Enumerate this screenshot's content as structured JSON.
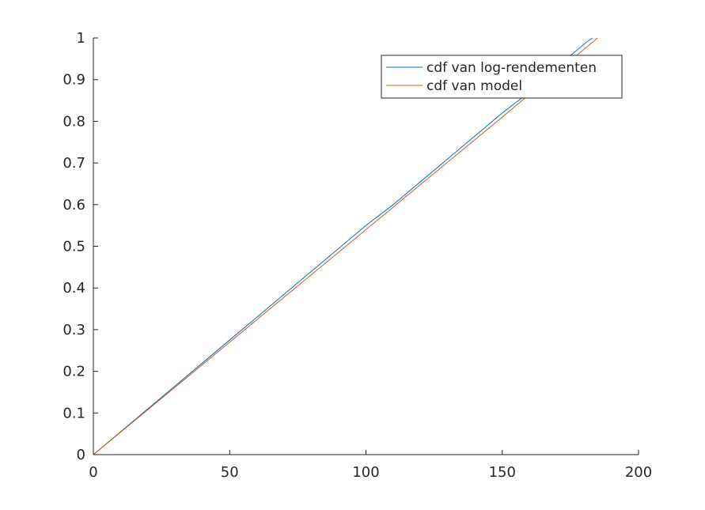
{
  "chart_data": {
    "type": "line",
    "title": "",
    "xlabel": "",
    "ylabel": "",
    "xlim": [
      0,
      200
    ],
    "ylim": [
      0,
      1
    ],
    "xticks": [
      "0",
      "50",
      "100",
      "150",
      "200"
    ],
    "yticks": [
      "0",
      "0.1",
      "0.2",
      "0.3",
      "0.4",
      "0.5",
      "0.6",
      "0.7",
      "0.8",
      "0.9",
      "1"
    ],
    "grid": false,
    "legend_position": "top-right",
    "series": [
      {
        "name": "cdf van log-rendementen",
        "color": "#0072BD",
        "x": [
          0,
          10,
          20,
          30,
          40,
          50,
          60,
          70,
          80,
          90,
          100,
          110,
          120,
          130,
          140,
          150,
          160,
          170,
          180,
          183
        ],
        "y": [
          0,
          0.055,
          0.11,
          0.165,
          0.22,
          0.275,
          0.33,
          0.385,
          0.44,
          0.495,
          0.55,
          0.6,
          0.655,
          0.71,
          0.765,
          0.82,
          0.87,
          0.93,
          0.985,
          1.0
        ]
      },
      {
        "name": "cdf van model",
        "color": "#D95319",
        "x": [
          0,
          10,
          20,
          30,
          40,
          50,
          60,
          70,
          80,
          90,
          100,
          110,
          120,
          130,
          140,
          150,
          160,
          170,
          180,
          185
        ],
        "y": [
          0,
          0.054,
          0.108,
          0.162,
          0.216,
          0.27,
          0.324,
          0.378,
          0.432,
          0.486,
          0.54,
          0.594,
          0.648,
          0.702,
          0.756,
          0.81,
          0.865,
          0.918,
          0.973,
          1.0
        ]
      }
    ]
  }
}
